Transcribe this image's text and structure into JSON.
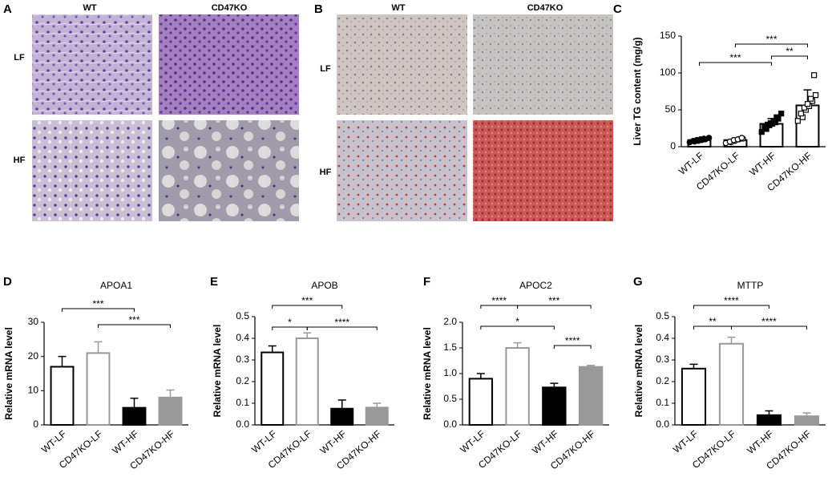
{
  "figure": {
    "panels": [
      {
        "label": "A",
        "columns": [
          "WT",
          "CD47KO"
        ],
        "rows": [
          "LF",
          "HF"
        ]
      },
      {
        "label": "B",
        "columns": [
          "WT",
          "CD47KO"
        ],
        "rows": [
          "LF",
          "HF"
        ]
      }
    ]
  },
  "chart_data": [
    {
      "type": "bar",
      "panel_label": "C",
      "ylabel": "Liver TG content (mg/g)",
      "categories": [
        "WT-LF",
        "CD47KO-LF",
        "WT-HF",
        "CD47KO-HF"
      ],
      "values": [
        9,
        9,
        31,
        56
      ],
      "errors": [
        2,
        2.5,
        7,
        21
      ],
      "colors": [
        "#ffffff",
        "#ffffff",
        "#ffffff",
        "#ffffff"
      ],
      "edgecolors": [
        "#000000",
        "#000000",
        "#000000",
        "#000000"
      ],
      "points": [
        [
          6,
          7,
          8,
          8,
          9,
          9,
          10,
          10,
          11,
          12
        ],
        [
          5,
          6,
          7,
          8,
          9,
          10,
          10,
          11,
          12
        ],
        [
          20,
          24,
          27,
          29,
          30,
          31,
          32,
          33,
          35,
          38,
          40,
          45
        ],
        [
          35,
          40,
          45,
          50,
          53,
          55,
          58,
          62,
          65,
          70,
          97
        ]
      ],
      "point_colors": [
        "#000000",
        "#ffffff",
        "#000000",
        "#ffffff"
      ],
      "point_shapes": [
        "circle",
        "circle",
        "square",
        "square"
      ],
      "ylim": [
        0,
        150
      ],
      "yticks": [
        0,
        50,
        100,
        150
      ],
      "annotations": [
        "***",
        "***",
        "**"
      ]
    },
    {
      "type": "bar",
      "panel_label": "D",
      "title": "APOA1",
      "ylabel": "Relative mRNA level",
      "categories": [
        "WT-LF",
        "CD47KO-LF",
        "WT-HF",
        "CD47KO-HF"
      ],
      "values": [
        17,
        21,
        5,
        8
      ],
      "errors": [
        3,
        3.3,
        2.8,
        2.2
      ],
      "colors": [
        "#ffffff",
        "#ffffff",
        "#000000",
        "#999999"
      ],
      "edgecolors": [
        "#000000",
        "#999999",
        "#000000",
        "#999999"
      ],
      "ylim": [
        0,
        30
      ],
      "yticks": [
        0,
        10,
        20,
        30
      ],
      "annotations": [
        "***",
        "***"
      ]
    },
    {
      "type": "bar",
      "panel_label": "E",
      "title": "APOB",
      "ylabel": "Relative mRNA level",
      "categories": [
        "WT-LF",
        "CD47KO-LF",
        "WT-HF",
        "CD47KO-HF"
      ],
      "values": [
        0.335,
        0.4,
        0.075,
        0.08
      ],
      "errors": [
        0.03,
        0.025,
        0.04,
        0.02
      ],
      "colors": [
        "#ffffff",
        "#ffffff",
        "#000000",
        "#999999"
      ],
      "edgecolors": [
        "#000000",
        "#999999",
        "#000000",
        "#999999"
      ],
      "ylim": [
        0,
        0.5
      ],
      "yticks": [
        {
          "value": 0,
          "label": "0.0"
        },
        0.1,
        0.2,
        0.3,
        0.4,
        0.5
      ],
      "annotations": [
        "***",
        "*",
        "****"
      ]
    },
    {
      "type": "bar",
      "panel_label": "F",
      "title": "APOC2",
      "ylabel": "Relative mRNA level",
      "categories": [
        "WT-LF",
        "CD47KO-LF",
        "WT-HF",
        "CD47KO-HF"
      ],
      "values": [
        0.9,
        1.5,
        0.73,
        1.13
      ],
      "errors": [
        0.1,
        0.1,
        0.08,
        0.03
      ],
      "colors": [
        "#ffffff",
        "#ffffff",
        "#000000",
        "#999999"
      ],
      "edgecolors": [
        "#000000",
        "#999999",
        "#000000",
        "#999999"
      ],
      "ylim": [
        0,
        2
      ],
      "yticks": [
        {
          "value": 0,
          "label": "0.0"
        },
        0.5,
        {
          "value": 1,
          "label": "1.0"
        },
        1.5,
        {
          "value": 2,
          "label": "2.0"
        }
      ],
      "annotations": [
        "****",
        "***",
        "*",
        "****"
      ]
    },
    {
      "type": "bar",
      "panel_label": "G",
      "title": "MTTP",
      "ylabel": "Relative mRNA level",
      "categories": [
        "WT-LF",
        "CD47KO-LF",
        "WT-HF",
        "CD47KO-HF"
      ],
      "values": [
        0.26,
        0.375,
        0.045,
        0.04
      ],
      "errors": [
        0.02,
        0.03,
        0.02,
        0.015
      ],
      "colors": [
        "#ffffff",
        "#ffffff",
        "#000000",
        "#999999"
      ],
      "edgecolors": [
        "#000000",
        "#999999",
        "#000000",
        "#999999"
      ],
      "ylim": [
        0,
        0.5
      ],
      "yticks": [
        {
          "value": 0,
          "label": "0.0"
        },
        0.1,
        0.2,
        0.3,
        0.4,
        0.5
      ],
      "annotations": [
        "****",
        "**",
        "****"
      ]
    }
  ]
}
